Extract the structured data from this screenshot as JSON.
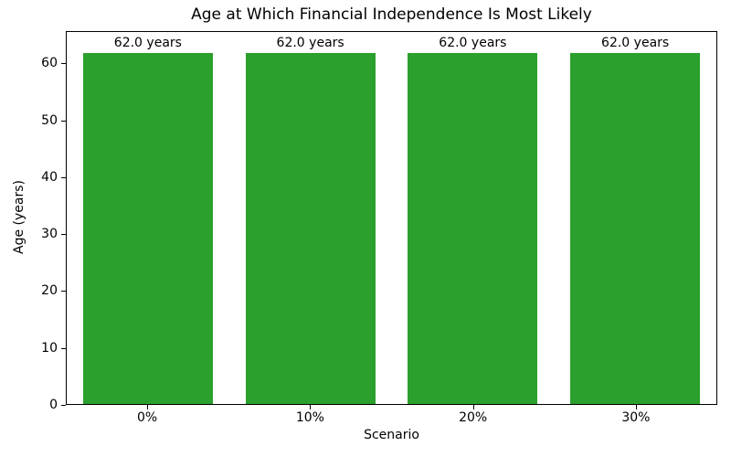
{
  "chart_data": {
    "type": "bar",
    "title": "Age at Which Financial Independence Is Most Likely",
    "xlabel": "Scenario",
    "ylabel": "Age (years)",
    "categories": [
      "0%",
      "10%",
      "20%",
      "30%"
    ],
    "values": [
      62.0,
      62.0,
      62.0,
      62.0
    ],
    "bar_labels": [
      "62.0 years",
      "62.0 years",
      "62.0 years",
      "62.0 years"
    ],
    "bar_color": "#2ca02c",
    "ylim": [
      0,
      65.7
    ],
    "yticks": [
      0,
      10,
      20,
      30,
      40,
      50,
      60
    ],
    "bar_width_fraction": 0.8,
    "grid": false,
    "legend_position": "none",
    "background_color": "#ffffff",
    "text_color": "#000000"
  }
}
